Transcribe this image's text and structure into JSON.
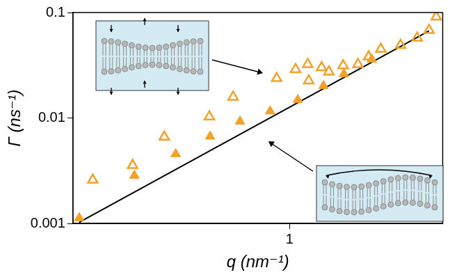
{
  "chart_data": {
    "type": "scatter",
    "x_label": "q (nm⁻¹)",
    "y_label": "Γ (ns⁻¹)",
    "log": true,
    "grid": false,
    "xlim": [
      0.17,
      3.5
    ],
    "xticks": [
      1
    ],
    "ylim": [
      0.001,
      0.1
    ],
    "yticks": [
      0.001,
      0.01,
      0.1
    ],
    "series": [
      {
        "type": "line",
        "color": "#000000",
        "line_style": "solid",
        "x": [
          0.179,
          3.13
        ],
        "values": [
          0.00103,
          0.067
        ]
      },
      {
        "color": "#f2a12b",
        "marker": "open_triangle",
        "x": [
          0.2,
          0.277,
          0.359,
          0.519,
          0.63,
          0.9,
          1.05,
          1.16,
          1.17,
          1.3,
          1.38,
          1.55,
          1.75,
          1.91,
          2.11,
          2.48,
          2.84,
          3.13,
          3.32
        ],
        "values": [
          0.00259,
          0.00356,
          0.00661,
          0.0103,
          0.0158,
          0.0238,
          0.0289,
          0.0323,
          0.0226,
          0.0301,
          0.0274,
          0.0314,
          0.0323,
          0.0381,
          0.045,
          0.0489,
          0.0575,
          0.068,
          0.0908
        ]
      },
      {
        "color": "#f2a12b",
        "marker": "filled_triangle",
        "x": [
          0.179,
          0.281,
          0.394,
          0.522,
          0.667,
          0.853,
          1.07,
          1.32,
          1.56,
          1.96
        ],
        "values": [
          0.00113,
          0.00285,
          0.00456,
          0.0067,
          0.0093,
          0.0116,
          0.0149,
          0.0202,
          0.0262,
          0.036
        ]
      }
    ]
  }
}
